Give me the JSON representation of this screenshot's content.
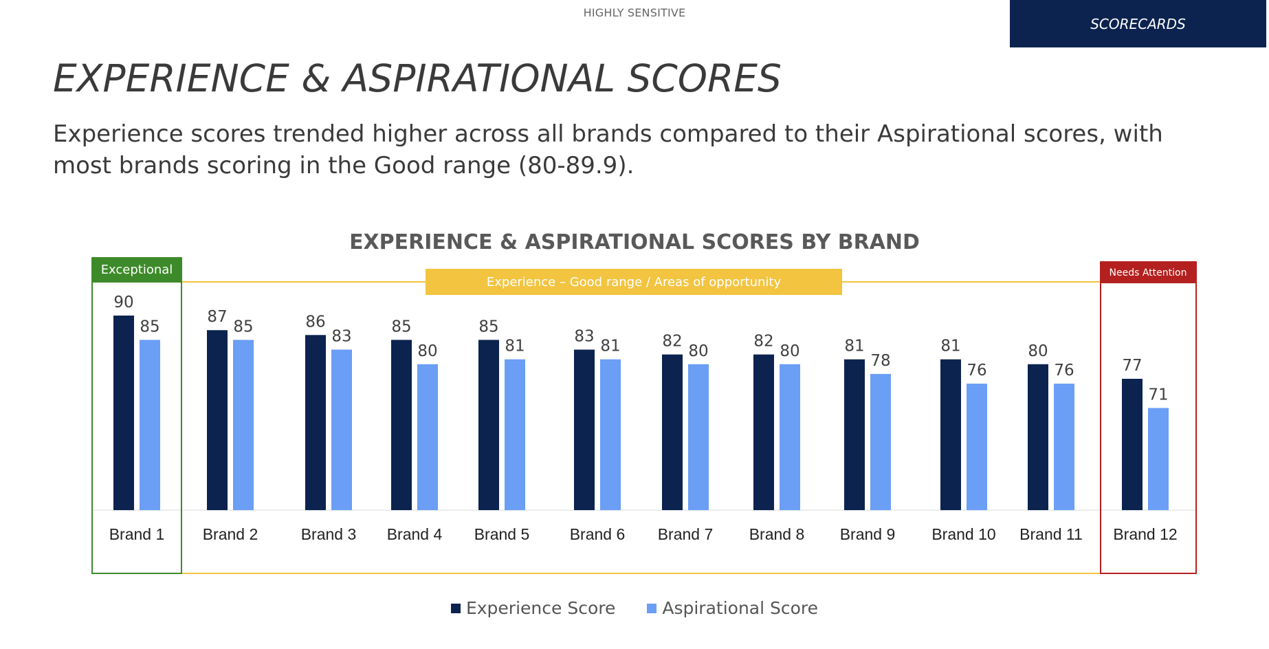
{
  "header": {
    "sensitivity": "HIGHLY SENSITIVE",
    "section_tag": "SCORECARDS"
  },
  "page": {
    "title": "EXPERIENCE & ASPIRATIONAL SCORES",
    "subtitle": "Experience scores trended higher across all brands compared to their Aspirational scores, with most brands scoring in the Good range (80-89.9)."
  },
  "colors": {
    "experience": "#0c234f",
    "aspirational": "#6b9ef5",
    "exceptional": "#3d8a2a",
    "good": "#f2c440",
    "attention": "#b4201f"
  },
  "chart_data": {
    "type": "bar",
    "title": "EXPERIENCE & ASPIRATIONAL SCORES BY BRAND",
    "categories": [
      "Brand 1",
      "Brand 2",
      "Brand 3",
      "Brand 4",
      "Brand 5",
      "Brand 6",
      "Brand 7",
      "Brand 8",
      "Brand 9",
      "Brand 10",
      "Brand 11",
      "Brand 12"
    ],
    "series": [
      {
        "name": "Experience Score",
        "values": [
          90,
          87,
          86,
          85,
          85,
          83,
          82,
          82,
          81,
          81,
          80,
          77
        ]
      },
      {
        "name": "Aspirational Score",
        "values": [
          85,
          85,
          83,
          80,
          81,
          81,
          80,
          80,
          78,
          76,
          76,
          71
        ]
      }
    ],
    "ylim": [
      50,
      95
    ],
    "xlabel": "",
    "ylabel": "",
    "legend_position": "bottom",
    "grid": false,
    "range_callouts": [
      {
        "label": "Exceptional",
        "categories": [
          "Brand 1"
        ]
      },
      {
        "label": "Experience – Good range / Areas of opportunity",
        "categories": [
          "Brand 2",
          "Brand 3",
          "Brand 4",
          "Brand 5",
          "Brand 6",
          "Brand 7",
          "Brand 8",
          "Brand 9",
          "Brand 10",
          "Brand 11"
        ]
      },
      {
        "label": "Needs Attention",
        "categories": [
          "Brand 12"
        ]
      }
    ]
  }
}
